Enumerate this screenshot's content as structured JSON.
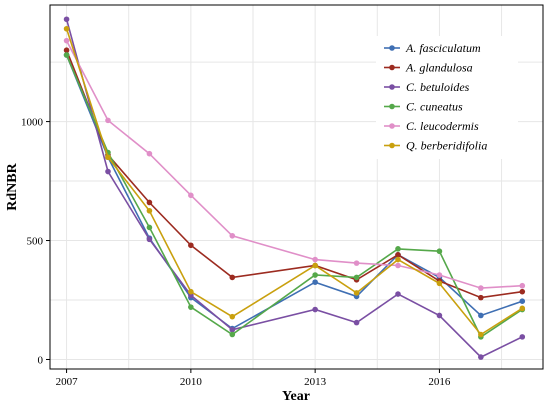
{
  "chart_data": {
    "type": "line",
    "xlabel": "Year",
    "ylabel": "RdNBR",
    "x": [
      2007,
      2008,
      2009,
      2010,
      2011,
      2013,
      2014,
      2015,
      2016,
      2017,
      2018
    ],
    "xticks": [
      2007,
      2010,
      2013,
      2016
    ],
    "yticks": [
      0,
      500,
      1000
    ],
    "xlim": [
      2006.6,
      2018.5
    ],
    "ylim": [
      -40,
      1490
    ],
    "grid": true,
    "legend_position": "top-right",
    "series": [
      {
        "name": "A. fasciculatum",
        "color": "#3f6fb3",
        "values": [
          1280,
          850,
          510,
          260,
          130,
          325,
          265,
          440,
          345,
          185,
          245
        ]
      },
      {
        "name": "A. glandulosa",
        "color": "#9c2b20",
        "values": [
          1300,
          860,
          660,
          480,
          345,
          395,
          335,
          440,
          330,
          260,
          285
        ]
      },
      {
        "name": "C. betuloides",
        "color": "#7a4fa3",
        "values": [
          1430,
          790,
          505,
          270,
          125,
          210,
          155,
          275,
          185,
          10,
          95
        ]
      },
      {
        "name": "C. cuneatus",
        "color": "#55a84a",
        "values": [
          1280,
          870,
          555,
          220,
          105,
          355,
          345,
          465,
          455,
          95,
          210
        ]
      },
      {
        "name": "C. leucodermis",
        "color": "#e08fc8",
        "values": [
          1340,
          1005,
          865,
          690,
          520,
          420,
          405,
          395,
          355,
          300,
          310
        ]
      },
      {
        "name": "Q. berberidifolia",
        "color": "#c9a00e",
        "values": [
          1390,
          850,
          625,
          285,
          180,
          395,
          280,
          420,
          320,
          105,
          215
        ]
      }
    ]
  }
}
